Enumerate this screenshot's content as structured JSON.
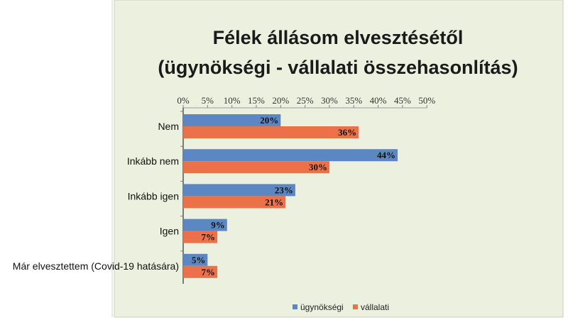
{
  "chart_data": {
    "type": "bar",
    "orientation": "horizontal",
    "title": [
      "Félek állásom elvesztésétől",
      "(ügynökségi - vállalati összehasonlítás)"
    ],
    "categories": [
      "Nem",
      "Inkább nem",
      "Inkább igen",
      "Igen",
      "Már elvesztettem (Covid-19 hatására)"
    ],
    "series": [
      {
        "name": "ügynökségi",
        "color": "#5b87c3",
        "values": [
          20,
          44,
          23,
          9,
          5
        ],
        "labels": [
          "20%",
          "44%",
          "23%",
          "9%",
          "5%"
        ]
      },
      {
        "name": "vállalati",
        "color": "#ec7148",
        "values": [
          36,
          30,
          21,
          7,
          7
        ],
        "labels": [
          "36%",
          "30%",
          "21%",
          "7%",
          "7%"
        ]
      }
    ],
    "xlim": [
      0,
      50
    ],
    "xticks": [
      0,
      5,
      10,
      15,
      20,
      25,
      30,
      35,
      40,
      45,
      50
    ],
    "xtick_labels": [
      "0%",
      "5%",
      "10%",
      "15%",
      "20%",
      "25%",
      "30%",
      "35%",
      "40%",
      "45%",
      "50%"
    ],
    "x_axis_position": "top",
    "legend_position": "bottom",
    "grid": false,
    "plot_background": "#ebf1de"
  }
}
